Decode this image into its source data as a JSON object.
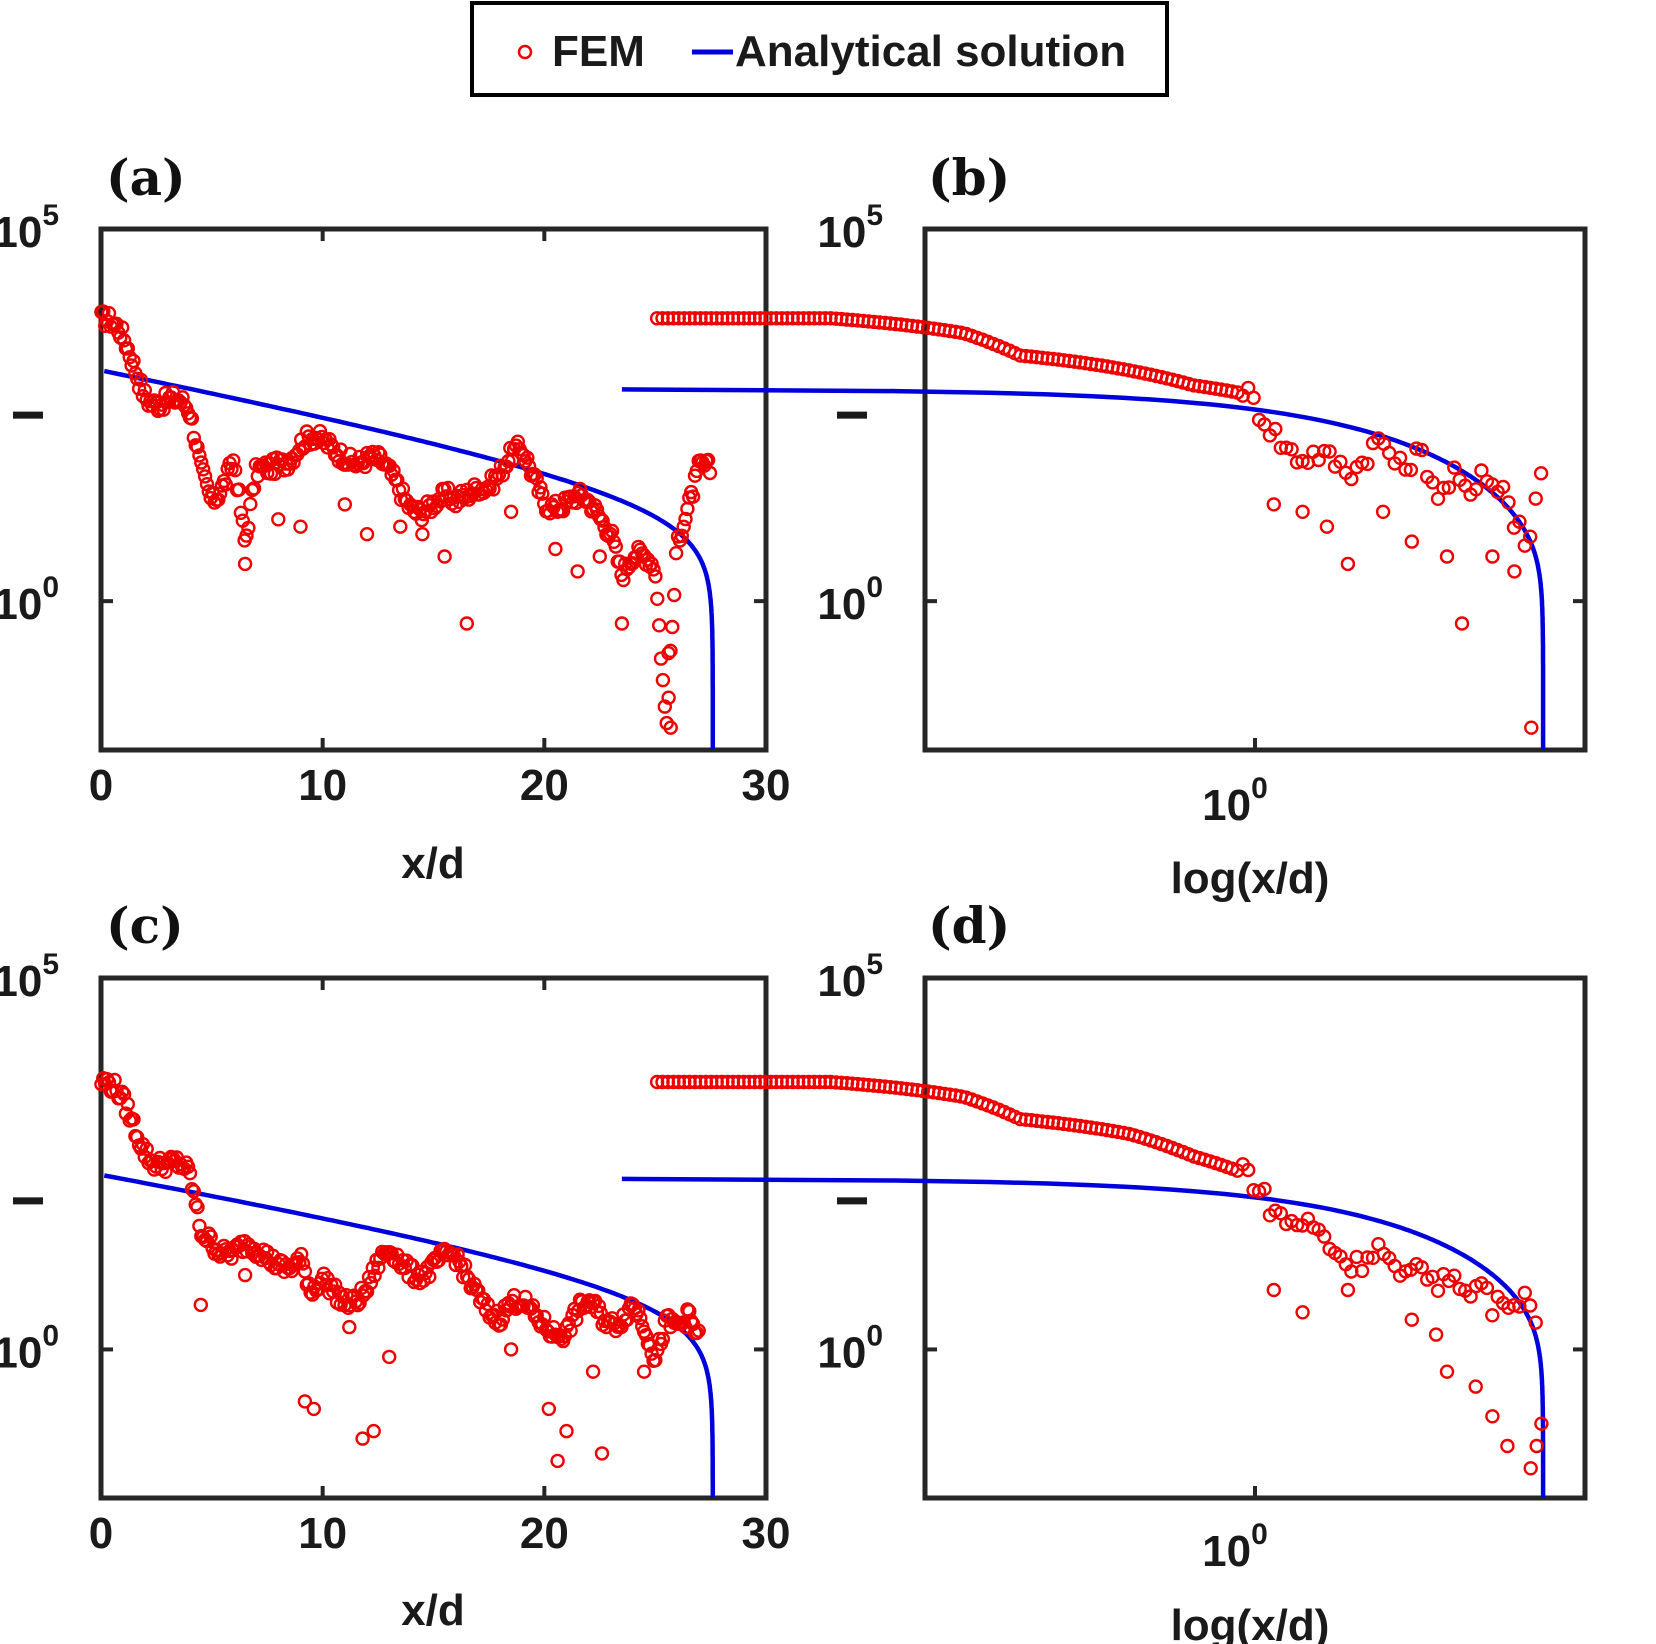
{
  "legend": {
    "fem_label": "FEM",
    "analytical_label": "Analytical solution",
    "fem_color": "#ee0000",
    "analytical_color": "#0000dd"
  },
  "chart_data": [
    {
      "panel": "(a)",
      "type": "scatter+line",
      "xscale": "linear",
      "yscale": "log",
      "xlabel": "x/d",
      "ylabel": "",
      "xlim": [
        0,
        30
      ],
      "ylim_exp": [
        -2,
        5
      ],
      "xticks": [
        "0",
        "10",
        "20",
        "30"
      ],
      "xtick_values": [
        0,
        10,
        20,
        30
      ],
      "yticks": [
        {
          "base": "10",
          "exp": "5",
          "value": 5
        },
        {
          "base": "10",
          "exp": "0",
          "value": 0
        }
      ],
      "ymark": 2.5,
      "fem_knots": [
        [
          0,
          3.8
        ],
        [
          1,
          3.4
        ],
        [
          2,
          2.9
        ],
        [
          3,
          2.7
        ],
        [
          4,
          2.4
        ],
        [
          4.5,
          1.8
        ],
        [
          5,
          1.5
        ],
        [
          6,
          1.9
        ],
        [
          6.5,
          0.6
        ],
        [
          7,
          1.6
        ],
        [
          8,
          2.0
        ],
        [
          9,
          2.1
        ],
        [
          10,
          2.0
        ],
        [
          11,
          2.1
        ],
        [
          12,
          1.9
        ],
        [
          13,
          1.6
        ],
        [
          14,
          1.4
        ],
        [
          15,
          1.3
        ],
        [
          16,
          1.2
        ],
        [
          17,
          1.7
        ],
        [
          18,
          1.7
        ],
        [
          19,
          1.9
        ],
        [
          20,
          1.5
        ],
        [
          21,
          1.3
        ],
        [
          22,
          1.2
        ],
        [
          23,
          1.1
        ],
        [
          23.5,
          0.5
        ],
        [
          24,
          0.6
        ],
        [
          25,
          0.3
        ],
        [
          25.5,
          -1.7
        ],
        [
          26,
          1.0
        ],
        [
          27,
          1.8
        ],
        [
          27.5,
          1.6
        ]
      ],
      "fem_dips": [
        [
          6.5,
          0.5
        ],
        [
          8,
          1.1
        ],
        [
          9,
          1.0
        ],
        [
          11,
          1.3
        ],
        [
          12,
          0.9
        ],
        [
          13.5,
          1.0
        ],
        [
          14.5,
          0.9
        ],
        [
          15.5,
          0.6
        ],
        [
          16.5,
          -0.3
        ],
        [
          18.5,
          1.2
        ],
        [
          20.5,
          0.7
        ],
        [
          21.5,
          0.4
        ],
        [
          22.5,
          0.6
        ],
        [
          23.5,
          -0.3
        ],
        [
          25.6,
          -0.7
        ],
        [
          25.7,
          -1.7
        ]
      ],
      "analytical": {
        "x0": 0.15,
        "x_end": 27.6,
        "y_start": 3.1,
        "slope": 0.05,
        "plunge": 0.7
      }
    },
    {
      "panel": "(b)",
      "type": "scatter+line",
      "xscale": "log",
      "yscale": "log",
      "xlabel": "log(x/d)",
      "ylabel": "",
      "xlim_exp": [
        -0.5,
        0.5
      ],
      "ylim_exp": [
        -2,
        5
      ],
      "xticks": [
        {
          "base": "10",
          "exp": "0",
          "value": 0
        }
      ],
      "yticks": [
        {
          "base": "10",
          "exp": "5",
          "value": 5
        },
        {
          "base": "10",
          "exp": "0",
          "value": 0
        }
      ],
      "ymark": 2.5,
      "fem_knots": [
        [
          0.1,
          3.8
        ],
        [
          0.3,
          3.8
        ],
        [
          0.5,
          3.7
        ],
        [
          0.7,
          3.6
        ],
        [
          0.9,
          3.4
        ],
        [
          1.0,
          3.3
        ],
        [
          2,
          3.1
        ],
        [
          3,
          2.9
        ],
        [
          4,
          2.8
        ],
        [
          5,
          2.4
        ],
        [
          6,
          1.9
        ],
        [
          7,
          1.8
        ],
        [
          8,
          1.9
        ],
        [
          10,
          2.0
        ],
        [
          12,
          1.9
        ],
        [
          15,
          1.5
        ],
        [
          18,
          1.6
        ],
        [
          20,
          1.7
        ],
        [
          22,
          1.3
        ],
        [
          24,
          1.0
        ],
        [
          25,
          0.5
        ],
        [
          26,
          1.3
        ],
        [
          27,
          1.9
        ],
        [
          27.5,
          1.6
        ]
      ],
      "fem_dips": [
        [
          5,
          1.3
        ],
        [
          6,
          1.2
        ],
        [
          7,
          1.0
        ],
        [
          8,
          0.5
        ],
        [
          10,
          1.2
        ],
        [
          12,
          0.8
        ],
        [
          15,
          0.6
        ],
        [
          16.5,
          -0.3
        ],
        [
          20,
          0.6
        ],
        [
          23,
          0.4
        ],
        [
          25.6,
          -1.7
        ]
      ],
      "analytical": {
        "x0": 0.08,
        "x_end": 27.6,
        "y_start": 2.85,
        "slope": 0.05,
        "plunge": 0.7
      }
    },
    {
      "panel": "(c)",
      "type": "scatter+line",
      "xscale": "linear",
      "yscale": "log",
      "xlabel": "x/d",
      "ylabel": "",
      "xlim": [
        0,
        30
      ],
      "ylim_exp": [
        -2,
        5
      ],
      "xticks": [
        "0",
        "10",
        "20",
        "30"
      ],
      "xtick_values": [
        0,
        10,
        20,
        30
      ],
      "yticks": [
        {
          "base": "10",
          "exp": "5",
          "value": 5
        },
        {
          "base": "10",
          "exp": "0",
          "value": 0
        }
      ],
      "ymark": 2.0,
      "fem_knots": [
        [
          0,
          3.6
        ],
        [
          1,
          3.2
        ],
        [
          2,
          2.8
        ],
        [
          3,
          2.5
        ],
        [
          4,
          2.2
        ],
        [
          4.5,
          1.6
        ],
        [
          5,
          1.6
        ],
        [
          6,
          1.3
        ],
        [
          7,
          1.2
        ],
        [
          8,
          1.3
        ],
        [
          9,
          1.2
        ],
        [
          9.5,
          0.6
        ],
        [
          10,
          0.8
        ],
        [
          11,
          0.8
        ],
        [
          12,
          0.8
        ],
        [
          13,
          1.2
        ],
        [
          14,
          1.2
        ],
        [
          15,
          1.1
        ],
        [
          16,
          1.1
        ],
        [
          17,
          0.9
        ],
        [
          18,
          0.4
        ],
        [
          19,
          0.5
        ],
        [
          20,
          0.5
        ],
        [
          21,
          0.2
        ],
        [
          22,
          0.5
        ],
        [
          23,
          0.5
        ],
        [
          24,
          0.6
        ],
        [
          25,
          -0.3
        ],
        [
          25.5,
          0.4
        ],
        [
          26.5,
          0.6
        ],
        [
          27,
          0.1
        ]
      ],
      "fem_dips": [
        [
          4.5,
          0.6
        ],
        [
          6.5,
          1.0
        ],
        [
          9.2,
          -0.7
        ],
        [
          9.6,
          -0.8
        ],
        [
          11.2,
          0.3
        ],
        [
          11.8,
          -1.2
        ],
        [
          12.3,
          -1.1
        ],
        [
          13,
          -0.1
        ],
        [
          18.5,
          0.0
        ],
        [
          20.2,
          -0.8
        ],
        [
          20.6,
          -1.5
        ],
        [
          21.0,
          -1.1
        ],
        [
          22.2,
          -0.3
        ],
        [
          22.6,
          -1.4
        ],
        [
          24.5,
          -0.3
        ]
      ],
      "analytical": {
        "x0": 0.15,
        "x_end": 27.6,
        "y_start": 2.35,
        "slope": 0.045,
        "plunge": 0.7
      }
    },
    {
      "panel": "(d)",
      "type": "scatter+line",
      "xscale": "log",
      "yscale": "log",
      "xlabel": "log(x/d)",
      "ylabel": "",
      "xlim_exp": [
        -0.5,
        0.5
      ],
      "ylim_exp": [
        -2,
        5
      ],
      "xticks": [
        {
          "base": "10",
          "exp": "0",
          "value": 0
        }
      ],
      "yticks": [
        {
          "base": "10",
          "exp": "5",
          "value": 5
        },
        {
          "base": "10",
          "exp": "0",
          "value": 0
        }
      ],
      "ymark": 2.0,
      "fem_knots": [
        [
          0.1,
          3.6
        ],
        [
          0.3,
          3.6
        ],
        [
          0.5,
          3.5
        ],
        [
          0.7,
          3.4
        ],
        [
          0.9,
          3.2
        ],
        [
          1.0,
          3.1
        ],
        [
          2,
          2.9
        ],
        [
          3,
          2.6
        ],
        [
          4,
          2.4
        ],
        [
          5,
          2.0
        ],
        [
          6,
          1.7
        ],
        [
          7,
          1.3
        ],
        [
          8,
          1.3
        ],
        [
          10,
          1.2
        ],
        [
          12,
          1.0
        ],
        [
          14,
          1.0
        ],
        [
          16,
          0.9
        ],
        [
          18,
          0.8
        ],
        [
          20,
          0.7
        ],
        [
          22,
          0.6
        ],
        [
          24,
          0.8
        ],
        [
          25,
          0.4
        ],
        [
          26,
          0.6
        ],
        [
          27,
          0.7
        ]
      ],
      "fem_dips": [
        [
          5,
          0.8
        ],
        [
          6,
          0.5
        ],
        [
          8,
          0.8
        ],
        [
          12,
          0.4
        ],
        [
          14,
          0.2
        ],
        [
          15,
          -0.3
        ],
        [
          18,
          -0.5
        ],
        [
          20,
          -0.9
        ],
        [
          22,
          -1.3
        ],
        [
          25.5,
          -1.6
        ],
        [
          26.5,
          -1.3
        ],
        [
          27.3,
          -1.0
        ]
      ],
      "analytical": {
        "x0": 0.08,
        "x_end": 27.6,
        "y_start": 2.3,
        "slope": 0.045,
        "plunge": 0.7
      }
    }
  ]
}
